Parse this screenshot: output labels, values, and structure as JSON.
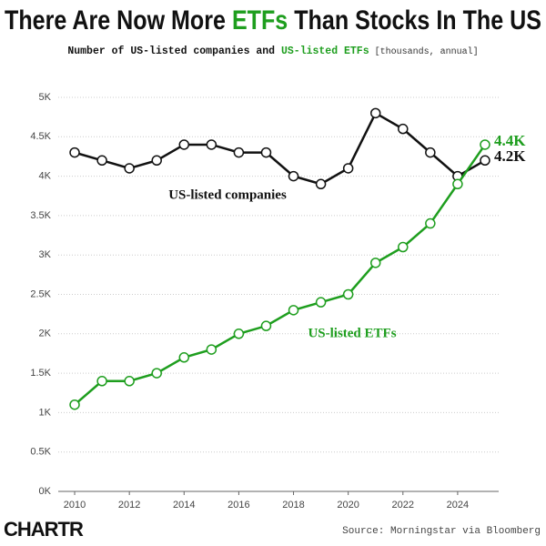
{
  "chart_data": {
    "type": "line",
    "title_parts": [
      "There Are Now More ",
      "ETFs",
      " Than Stocks In The US"
    ],
    "subtitle_parts": [
      "Number of US-listed companies and ",
      "US-listed ETFs",
      " [thousands, annual]"
    ],
    "x": [
      2010,
      2011,
      2012,
      2013,
      2014,
      2015,
      2016,
      2017,
      2018,
      2019,
      2020,
      2021,
      2022,
      2023,
      2024,
      2025
    ],
    "series": [
      {
        "name": "US-listed companies",
        "color": "#111111",
        "values": [
          4.3,
          4.2,
          4.1,
          4.2,
          4.4,
          4.4,
          4.3,
          4.3,
          4.0,
          3.9,
          4.1,
          4.8,
          4.6,
          4.3,
          4.0,
          4.2
        ],
        "value_labels": [
          null,
          null,
          null,
          null,
          null,
          null,
          null,
          null,
          null,
          null,
          null,
          null,
          null,
          null,
          null,
          "4.2K"
        ]
      },
      {
        "name": "US-listed ETFs",
        "color": "#1e9e1e",
        "values": [
          1.1,
          1.4,
          1.4,
          1.5,
          1.7,
          1.8,
          2.0,
          2.1,
          2.3,
          2.4,
          2.5,
          2.9,
          3.1,
          3.4,
          3.9,
          4.4
        ],
        "value_labels": [
          null,
          null,
          null,
          null,
          null,
          null,
          null,
          null,
          null,
          null,
          null,
          null,
          null,
          null,
          null,
          "4.4K"
        ]
      }
    ],
    "xlim": [
      2009.4,
      2025.5
    ],
    "xticks": [
      2010,
      2012,
      2014,
      2016,
      2018,
      2020,
      2022,
      2024
    ],
    "ylim": [
      0,
      5
    ],
    "yticks": [
      {
        "value": 0,
        "label": "0K"
      },
      {
        "value": 0.5,
        "label": "0.5K"
      },
      {
        "value": 1,
        "label": "1K"
      },
      {
        "value": 1.5,
        "label": "1.5K"
      },
      {
        "value": 2,
        "label": "2K"
      },
      {
        "value": 2.5,
        "label": "2.5K"
      },
      {
        "value": 3,
        "label": "3K"
      },
      {
        "value": 3.5,
        "label": "3.5K"
      },
      {
        "value": 4,
        "label": "4K"
      },
      {
        "value": 4.5,
        "label": "4.5K"
      },
      {
        "value": 5,
        "label": "5K"
      }
    ],
    "grid": true,
    "brand": "CHARTR",
    "source": "Source: Morningstar via Bloomberg"
  }
}
